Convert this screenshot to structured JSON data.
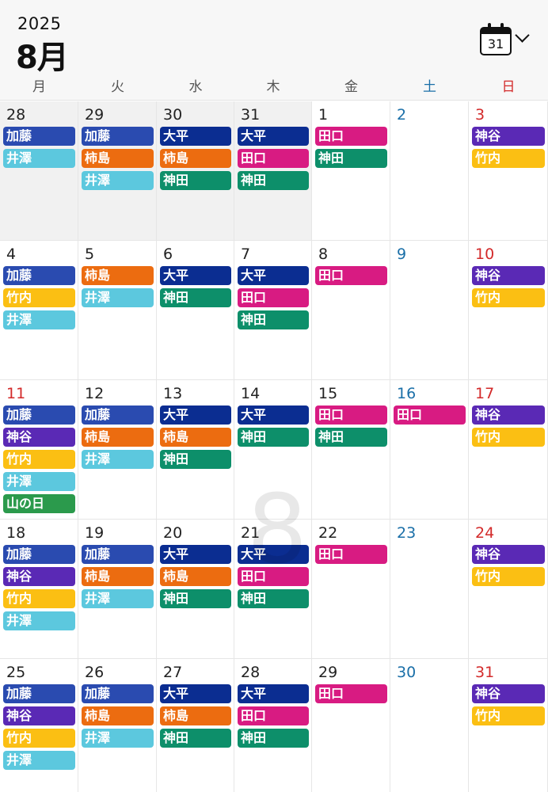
{
  "header": {
    "year": "2025",
    "month": "8月"
  },
  "calendar_button": {
    "icon": "calendar-icon",
    "day": "31",
    "chevron": "chevron-down-icon"
  },
  "weekdays": [
    "月",
    "火",
    "水",
    "木",
    "金",
    "土",
    "日"
  ],
  "watermark": "8",
  "colors": {
    "加藤": "#2a4bb0",
    "井澤": "#5cc8de",
    "柿島": "#ec6c10",
    "大平": "#0b2d91",
    "田口": "#d81b82",
    "神田": "#0d8f6a",
    "神谷": "#5a29b5",
    "竹内": "#fbbf13",
    "山の日": "#2b9a4c"
  },
  "weeks": [
    [
      {
        "day": "28",
        "other": true,
        "events": [
          "加藤",
          "井澤"
        ]
      },
      {
        "day": "29",
        "other": true,
        "events": [
          "加藤",
          "柿島",
          "井澤"
        ]
      },
      {
        "day": "30",
        "other": true,
        "events": [
          "大平",
          "柿島",
          "神田"
        ]
      },
      {
        "day": "31",
        "other": true,
        "events": [
          "大平",
          "田口",
          "神田"
        ]
      },
      {
        "day": "1",
        "events": [
          "田口",
          "神田"
        ]
      },
      {
        "day": "2",
        "events": []
      },
      {
        "day": "3",
        "events": [
          "神谷",
          "竹内"
        ]
      }
    ],
    [
      {
        "day": "4",
        "events": [
          "加藤",
          "竹内",
          "井澤"
        ]
      },
      {
        "day": "5",
        "events": [
          "柿島",
          "井澤"
        ]
      },
      {
        "day": "6",
        "events": [
          "大平",
          "神田"
        ]
      },
      {
        "day": "7",
        "events": [
          "大平",
          "田口",
          "神田"
        ]
      },
      {
        "day": "8",
        "events": [
          "田口"
        ]
      },
      {
        "day": "9",
        "events": []
      },
      {
        "day": "10",
        "events": [
          "神谷",
          "竹内"
        ]
      }
    ],
    [
      {
        "day": "11",
        "holiday": true,
        "events": [
          "加藤",
          "神谷",
          "竹内",
          "井澤",
          "山の日"
        ]
      },
      {
        "day": "12",
        "events": [
          "加藤",
          "柿島",
          "井澤"
        ]
      },
      {
        "day": "13",
        "events": [
          "大平",
          "柿島",
          "神田"
        ]
      },
      {
        "day": "14",
        "events": [
          "大平",
          "神田"
        ]
      },
      {
        "day": "15",
        "events": [
          "田口",
          "神田"
        ]
      },
      {
        "day": "16",
        "events": [
          "田口"
        ]
      },
      {
        "day": "17",
        "events": [
          "神谷",
          "竹内"
        ]
      }
    ],
    [
      {
        "day": "18",
        "events": [
          "加藤",
          "神谷",
          "竹内",
          "井澤"
        ]
      },
      {
        "day": "19",
        "events": [
          "加藤",
          "柿島",
          "井澤"
        ]
      },
      {
        "day": "20",
        "events": [
          "大平",
          "柿島",
          "神田"
        ]
      },
      {
        "day": "21",
        "events": [
          "大平",
          "田口",
          "神田"
        ]
      },
      {
        "day": "22",
        "events": [
          "田口"
        ]
      },
      {
        "day": "23",
        "events": []
      },
      {
        "day": "24",
        "events": [
          "神谷",
          "竹内"
        ]
      }
    ],
    [
      {
        "day": "25",
        "events": [
          "加藤",
          "神谷",
          "竹内",
          "井澤"
        ]
      },
      {
        "day": "26",
        "events": [
          "加藤",
          "柿島",
          "井澤"
        ]
      },
      {
        "day": "27",
        "events": [
          "大平",
          "柿島",
          "神田"
        ]
      },
      {
        "day": "28",
        "events": [
          "大平",
          "田口",
          "神田"
        ]
      },
      {
        "day": "29",
        "events": [
          "田口"
        ]
      },
      {
        "day": "30",
        "events": []
      },
      {
        "day": "31",
        "events": [
          "神谷",
          "竹内"
        ]
      }
    ]
  ]
}
